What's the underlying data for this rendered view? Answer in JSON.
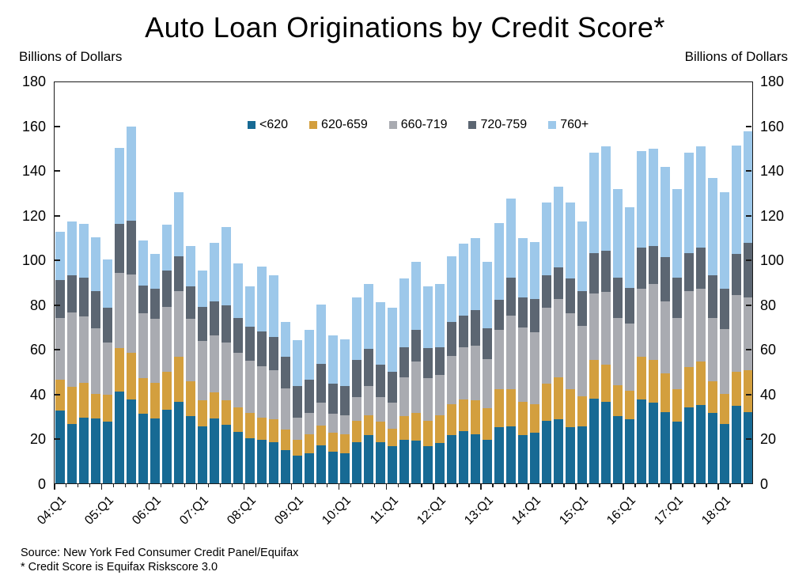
{
  "title": "Auto Loan Originations by Credit Score*",
  "y_axis_unit_left": "Billions of Dollars",
  "y_axis_unit_right": "Billions of Dollars",
  "source_line1": "Source: New York Fed Consumer Credit Panel/Equifax",
  "source_line2": "* Credit Score is Equifax Riskscore 3.0",
  "chart_data": {
    "type": "bar",
    "stacked": true,
    "title": "Auto Loan Originations by Credit Score*",
    "xlabel": "",
    "ylabel": "Billions of Dollars",
    "ylim": [
      0,
      180
    ],
    "ytick_step": 20,
    "grid": false,
    "legend_position": "top-center-inside",
    "x_tick_label_every": 4,
    "categories": [
      "04:Q1",
      "04:Q2",
      "04:Q3",
      "04:Q4",
      "05:Q1",
      "05:Q2",
      "05:Q3",
      "05:Q4",
      "06:Q1",
      "06:Q2",
      "06:Q3",
      "06:Q4",
      "07:Q1",
      "07:Q2",
      "07:Q3",
      "07:Q4",
      "08:Q1",
      "08:Q2",
      "08:Q3",
      "08:Q4",
      "09:Q1",
      "09:Q2",
      "09:Q3",
      "09:Q4",
      "10:Q1",
      "10:Q2",
      "10:Q3",
      "10:Q4",
      "11:Q1",
      "11:Q2",
      "11:Q3",
      "11:Q4",
      "12:Q1",
      "12:Q2",
      "12:Q3",
      "12:Q4",
      "13:Q1",
      "13:Q2",
      "13:Q3",
      "13:Q4",
      "14:Q1",
      "14:Q2",
      "14:Q3",
      "14:Q4",
      "15:Q1",
      "15:Q2",
      "15:Q3",
      "15:Q4",
      "16:Q1",
      "16:Q2",
      "16:Q3",
      "16:Q4",
      "17:Q1",
      "17:Q2",
      "17:Q3",
      "17:Q4",
      "18:Q1",
      "18:Q2",
      "18:Q3"
    ],
    "series": [
      {
        "name": "<620",
        "color": "#176a94",
        "values": [
          32.5,
          26.5,
          29.5,
          29,
          27.5,
          41,
          37.5,
          31,
          29,
          33,
          36.5,
          30,
          25.5,
          29,
          26,
          23,
          20,
          19.5,
          18.5,
          15,
          12.5,
          13.5,
          17,
          14,
          13.5,
          18.5,
          21.5,
          18.5,
          16.5,
          19.5,
          19,
          16.5,
          18,
          21.5,
          23.5,
          22,
          19.5,
          25,
          25.5,
          21.5,
          22.5,
          28,
          28.5,
          25,
          25.5,
          38,
          36.5,
          30,
          28.5,
          37.5,
          36,
          32,
          27.5,
          34,
          35,
          31.5,
          26.5,
          34.5,
          32
        ]
      },
      {
        "name": "620-659",
        "color": "#d39f3e",
        "values": [
          14,
          16.5,
          15.5,
          11,
          12,
          19.5,
          21,
          16,
          16,
          17,
          20,
          15.5,
          11.5,
          11.5,
          11,
          11,
          11.5,
          10,
          10,
          9,
          7,
          8.5,
          9,
          8.5,
          8.5,
          9.5,
          9,
          9,
          8,
          10.5,
          12.5,
          11.5,
          12.5,
          14,
          14,
          15,
          14,
          17,
          16.5,
          15,
          13,
          16.5,
          19,
          17,
          13.5,
          17,
          16.5,
          14,
          13,
          19,
          19,
          17,
          14.5,
          18,
          19.5,
          14,
          13.5,
          15.5,
          18.5
        ]
      },
      {
        "name": "660-719",
        "color": "#a9abb1",
        "values": [
          27.5,
          33.5,
          29.5,
          29.5,
          23.5,
          33.5,
          35,
          29,
          28.5,
          29,
          29.5,
          28,
          26.5,
          25.5,
          26,
          24.5,
          23.5,
          23,
          22,
          18.5,
          10,
          9.5,
          10,
          8.5,
          8.5,
          10.5,
          13,
          11,
          11.5,
          17.5,
          23,
          19,
          18,
          21.5,
          23.5,
          24.5,
          22,
          26.5,
          33,
          33,
          32,
          34,
          35,
          34,
          31.5,
          30,
          32.5,
          30,
          30,
          30.5,
          34,
          32.5,
          32,
          34,
          32.5,
          28.5,
          29,
          34,
          32.5
        ]
      },
      {
        "name": "720-759",
        "color": "#5c6672",
        "values": [
          17,
          16.5,
          17.5,
          16.5,
          15.5,
          22,
          24,
          12.5,
          13.5,
          16,
          15.5,
          14.5,
          15.5,
          15.5,
          16.5,
          15.5,
          15,
          15.5,
          15,
          14,
          14,
          15,
          17.5,
          13.5,
          13,
          16.5,
          16.5,
          14.5,
          14,
          13.5,
          14,
          13.5,
          12.5,
          15,
          14,
          16,
          14,
          13.5,
          17,
          13.5,
          15,
          14.5,
          14,
          15.5,
          15.5,
          18,
          18.5,
          18,
          16,
          18.5,
          17,
          19.5,
          18,
          17,
          18.5,
          19,
          18,
          18.5,
          24.5
        ]
      },
      {
        "name": "760+",
        "color": "#9dc8ea",
        "values": [
          21.5,
          24,
          24,
          24,
          21.5,
          34,
          42,
          20,
          15.5,
          20.5,
          28.5,
          18,
          16,
          26,
          35,
          24.5,
          18,
          29,
          27.5,
          15.5,
          20.5,
          22,
          26.5,
          21.5,
          21,
          28,
          29,
          28,
          28.5,
          30.5,
          30.5,
          27.5,
          28,
          29.5,
          32,
          32,
          29.5,
          34.5,
          35.5,
          26.5,
          25.5,
          32.5,
          36,
          34,
          31,
          45,
          46.5,
          39.5,
          36,
          43,
          43.5,
          40.5,
          39.5,
          45,
          45,
          43.5,
          43,
          48.5,
          50
        ]
      }
    ]
  }
}
